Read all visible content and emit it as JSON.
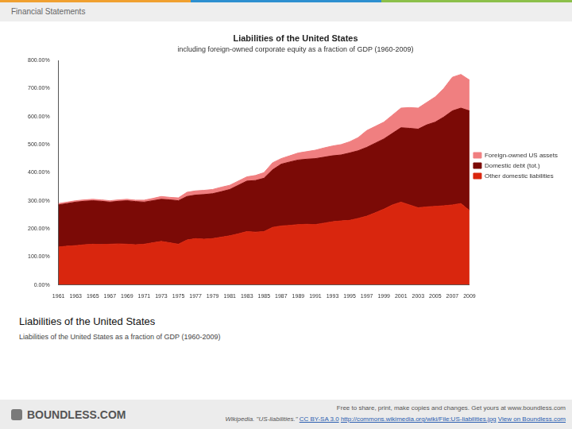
{
  "header": "Financial Statements",
  "chart_data": {
    "type": "area",
    "title": "Liabilities of the United States",
    "subtitle": "including foreign-owned corporate equity as a fraction of GDP (1960-2009)",
    "categories": [
      "1961",
      null,
      "1963",
      null,
      "1965",
      null,
      "1967",
      null,
      "1969",
      null,
      "1971",
      null,
      "1973",
      null,
      "1975",
      null,
      "1977",
      null,
      "1979",
      null,
      "1981",
      null,
      "1983",
      null,
      "1985",
      null,
      "1987",
      null,
      "1989",
      null,
      "1991",
      null,
      "1993",
      null,
      "1995",
      null,
      "1997",
      null,
      "1999",
      null,
      "2001",
      null,
      "2003",
      null,
      "2005",
      null,
      "2007",
      null,
      "2009"
    ],
    "series": [
      {
        "name": "Other domestic liabilities",
        "color": "#d9260e",
        "values": [
          135,
          138,
          140,
          143,
          145,
          144,
          145,
          146,
          145,
          143,
          145,
          150,
          155,
          150,
          145,
          160,
          165,
          163,
          165,
          170,
          175,
          182,
          190,
          188,
          190,
          205,
          210,
          212,
          215,
          216,
          215,
          220,
          225,
          228,
          230,
          237,
          245,
          257,
          270,
          285,
          295,
          285,
          275,
          278,
          280,
          282,
          285,
          290,
          265
        ]
      },
      {
        "name": "Domestic debt (tot.)",
        "color": "#7b0a06",
        "values": [
          150,
          152,
          155,
          155,
          155,
          154,
          150,
          152,
          155,
          154,
          150,
          150,
          150,
          153,
          155,
          155,
          155,
          159,
          160,
          162,
          165,
          173,
          180,
          184,
          190,
          205,
          220,
          226,
          230,
          232,
          235,
          235,
          235,
          235,
          240,
          241,
          245,
          248,
          250,
          255,
          265,
          273,
          280,
          292,
          300,
          316,
          335,
          340,
          355
        ]
      },
      {
        "name": "Foreign-owned US assets",
        "color": "#f07f80",
        "values": [
          5,
          5,
          5,
          5,
          5,
          5,
          5,
          5,
          5,
          5,
          7,
          8,
          10,
          9,
          10,
          15,
          15,
          15,
          15,
          16,
          15,
          15,
          15,
          18,
          20,
          25,
          20,
          22,
          25,
          27,
          30,
          33,
          35,
          37,
          40,
          47,
          60,
          60,
          60,
          65,
          70,
          74,
          75,
          80,
          90,
          102,
          120,
          120,
          110
        ]
      }
    ],
    "ylim": [
      0,
      800
    ],
    "yticks": [
      {
        "value": 0,
        "label": "0.00%"
      },
      {
        "value": 100,
        "label": "100.00%"
      },
      {
        "value": 200,
        "label": "200.00%"
      },
      {
        "value": 300,
        "label": "300.00%"
      },
      {
        "value": 400,
        "label": "400.00%"
      },
      {
        "value": 500,
        "label": "500.00%"
      },
      {
        "value": 600,
        "label": "600.00%"
      },
      {
        "value": 700,
        "label": "700.00%"
      },
      {
        "value": 800,
        "label": "800.00%"
      }
    ],
    "grid": false,
    "stacked": true,
    "legend": "right"
  },
  "caption": {
    "title": "Liabilities of the United States",
    "text": "Liabilities of the United States as a fraction of GDP (1960-2009)"
  },
  "footer": {
    "logo": "BOUNDLESS.COM",
    "notice": "Free to share, print, make copies and changes. Get yours at www.boundless.com",
    "source_text": "Wikipedia. \"US-liabilities.\"",
    "license": "CC BY-SA 3.0",
    "url": "http://commons.wikimedia.org/wiki/File:US-liabilities.jpg",
    "link": "View on Boundless.com"
  }
}
